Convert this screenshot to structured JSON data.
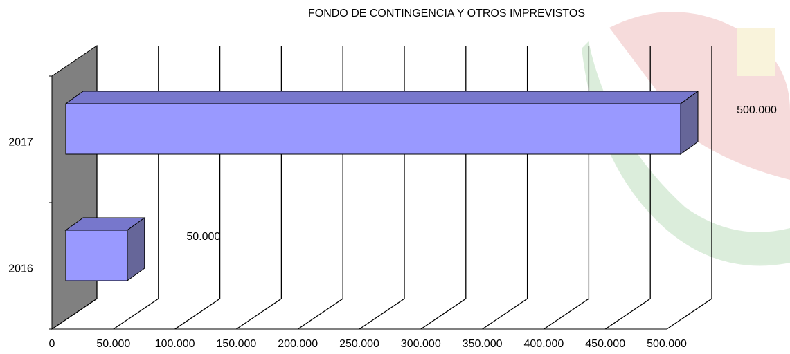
{
  "chart_data": {
    "type": "bar3d-horizontal",
    "title": "FONDO DE CONTINGENCIA Y OTROS IMPREVISTOS",
    "categories": [
      "2016",
      "2017"
    ],
    "values": [
      50000,
      500000
    ],
    "value_labels": [
      "50.000",
      "500.000"
    ],
    "color": "#9999ff",
    "xlim": [
      0,
      500000
    ],
    "xticks": [
      0,
      {
        "value": 50000,
        "label": "50.000"
      },
      {
        "value": 100000,
        "label": "100.000"
      },
      {
        "value": 150000,
        "label": "150.000"
      },
      {
        "value": 200000,
        "label": "200.000"
      },
      {
        "value": 250000,
        "label": "250.000"
      },
      {
        "value": 300000,
        "label": "300.000"
      },
      {
        "value": 350000,
        "label": "350.000"
      },
      {
        "value": 400000,
        "label": "400.000"
      },
      {
        "value": 450000,
        "label": "450.000"
      },
      {
        "value": 500000,
        "label": "500.000"
      }
    ],
    "grid": true
  }
}
